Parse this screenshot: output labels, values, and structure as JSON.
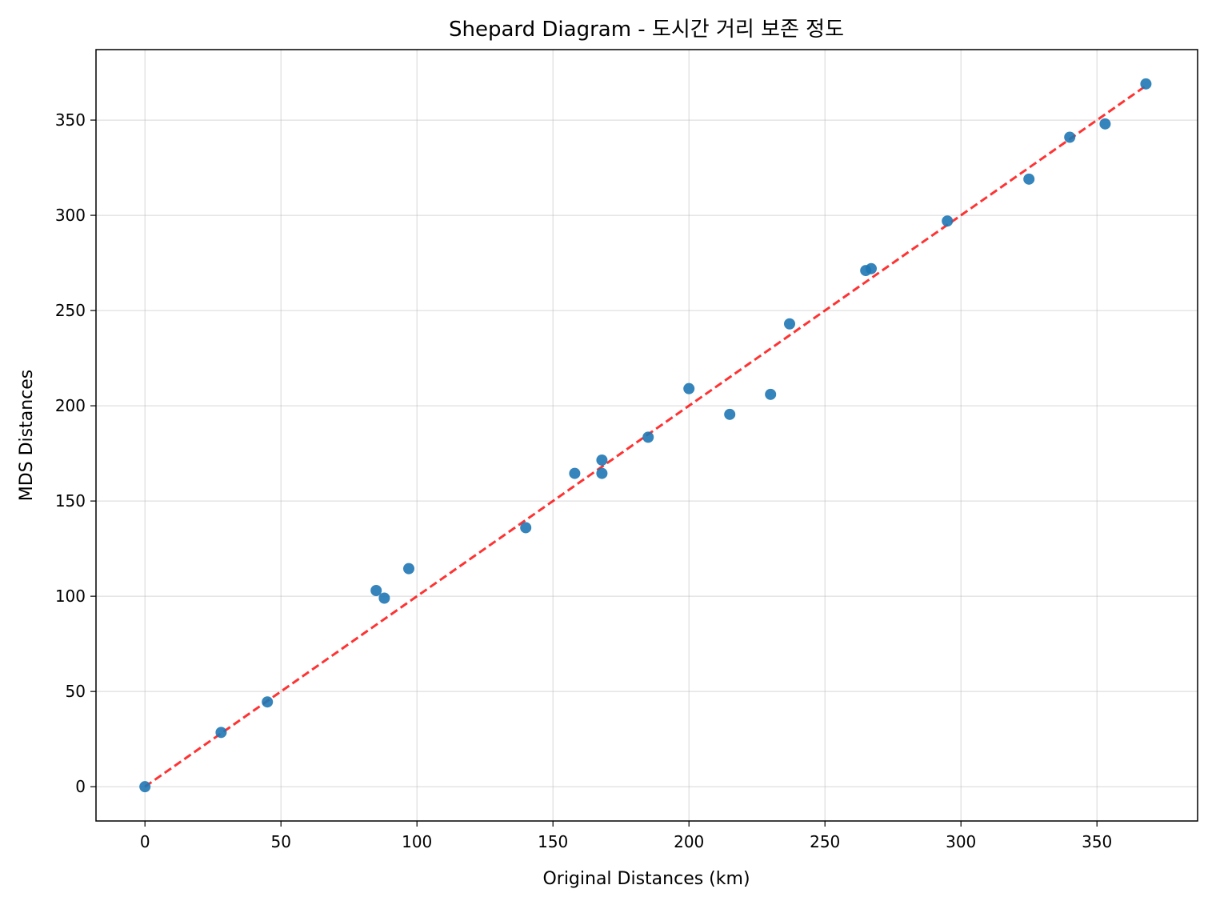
{
  "chart_data": {
    "type": "scatter",
    "title": "Shepard Diagram - 도시간 거리 보존 정도",
    "xlabel": "Original Distances (km)",
    "ylabel": "MDS Distances",
    "xlim": [
      -18,
      387
    ],
    "ylim": [
      -18,
      387
    ],
    "xticks": [
      0,
      50,
      100,
      150,
      200,
      250,
      300,
      350
    ],
    "yticks": [
      0,
      50,
      100,
      150,
      200,
      250,
      300,
      350
    ],
    "grid": true,
    "point_color": "#1f77b4",
    "reference_line": {
      "from": [
        0,
        0
      ],
      "to": [
        368,
        368
      ],
      "style": "dashed",
      "color": "#ff0000"
    },
    "points": [
      {
        "x": 0,
        "y": 0
      },
      {
        "x": 28,
        "y": 28.5
      },
      {
        "x": 45,
        "y": 44.5
      },
      {
        "x": 85,
        "y": 103
      },
      {
        "x": 88,
        "y": 99
      },
      {
        "x": 97,
        "y": 114.5
      },
      {
        "x": 140,
        "y": 136
      },
      {
        "x": 158,
        "y": 164.5
      },
      {
        "x": 168,
        "y": 171.5
      },
      {
        "x": 168,
        "y": 164.5
      },
      {
        "x": 185,
        "y": 183.5
      },
      {
        "x": 200,
        "y": 209
      },
      {
        "x": 215,
        "y": 195.5
      },
      {
        "x": 230,
        "y": 206
      },
      {
        "x": 237,
        "y": 243
      },
      {
        "x": 265,
        "y": 271
      },
      {
        "x": 267,
        "y": 272
      },
      {
        "x": 295,
        "y": 297
      },
      {
        "x": 325,
        "y": 319
      },
      {
        "x": 340,
        "y": 341
      },
      {
        "x": 353,
        "y": 348
      },
      {
        "x": 368,
        "y": 369
      }
    ]
  }
}
